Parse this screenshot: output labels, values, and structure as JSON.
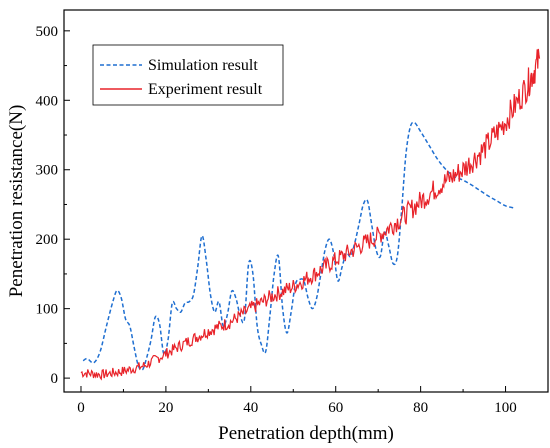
{
  "chart_data": {
    "type": "line",
    "xlabel": "Penetration  depth(mm)",
    "ylabel": "Penetration  resistance(N)",
    "xlim": [
      -4,
      110
    ],
    "ylim": [
      -20,
      530
    ],
    "xticks": [
      "0",
      "20",
      "40",
      "60",
      "80",
      "100"
    ],
    "yticks": [
      "0",
      "100",
      "200",
      "300",
      "400",
      "500"
    ],
    "legend_position": "top-left",
    "series": [
      {
        "name": "Simulation result",
        "style": "dashed",
        "color": "#1f6fd1",
        "x": [
          0.5,
          1.5,
          3,
          4.5,
          6,
          7.5,
          8.5,
          9.5,
          10.5,
          11.5,
          12.5,
          13.5,
          14.5,
          15.5,
          16.5,
          17.5,
          18.5,
          19.5,
          20.5,
          21.5,
          22.5,
          23.5,
          24.5,
          25.5,
          26.5,
          27.5,
          28.5,
          29.5,
          30.5,
          31.5,
          32.5,
          33.5,
          34.5,
          35.5,
          36.5,
          37.5,
          38.5,
          39.5,
          40.5,
          41.5,
          42.5,
          43.5,
          44.5,
          45.5,
          46.5,
          47.5,
          48.5,
          49.5,
          50.5,
          51.5,
          52.5,
          53.5,
          54.5,
          55.5,
          56.5,
          57.5,
          58.5,
          59.5,
          60.5,
          61.5,
          62.5,
          63.5,
          64.5,
          65.5,
          66.5,
          67.5,
          68.5,
          69.5,
          70.5,
          71.5,
          72.5,
          73.5,
          74.5,
          75.5,
          76.5,
          77.5,
          78.5,
          80,
          82,
          84,
          86,
          88,
          90,
          92,
          94,
          96,
          98,
          100,
          102
        ],
        "y": [
          25,
          28,
          22,
          38,
          75,
          110,
          126,
          115,
          85,
          75,
          45,
          18,
          12,
          30,
          55,
          88,
          78,
          35,
          55,
          108,
          100,
          95,
          108,
          110,
          120,
          160,
          205,
          170,
          120,
          95,
          110,
          75,
          92,
          125,
          115,
          90,
          85,
          165,
          150,
          75,
          48,
          38,
          90,
          150,
          175,
          100,
          65,
          95,
          135,
          142,
          140,
          115,
          100,
          115,
          150,
          185,
          200,
          180,
          140,
          160,
          180,
          175,
          195,
          222,
          250,
          255,
          220,
          185,
          175,
          210,
          190,
          165,
          175,
          240,
          320,
          360,
          368,
          355,
          335,
          315,
          300,
          290,
          285,
          278,
          270,
          262,
          255,
          248,
          245
        ]
      },
      {
        "name": "Experiment result",
        "style": "solid",
        "color": "#e8232a",
        "x": [
          0,
          5,
          10,
          15,
          20,
          25,
          30,
          35,
          40,
          45,
          50,
          55,
          60,
          65,
          70,
          75,
          80,
          85,
          90,
          95,
          100,
          105,
          108
        ],
        "y": [
          8,
          5,
          10,
          18,
          35,
          52,
          68,
          80,
          100,
          118,
          132,
          150,
          170,
          188,
          205,
          228,
          255,
          280,
          300,
          330,
          370,
          420,
          460
        ]
      }
    ]
  }
}
